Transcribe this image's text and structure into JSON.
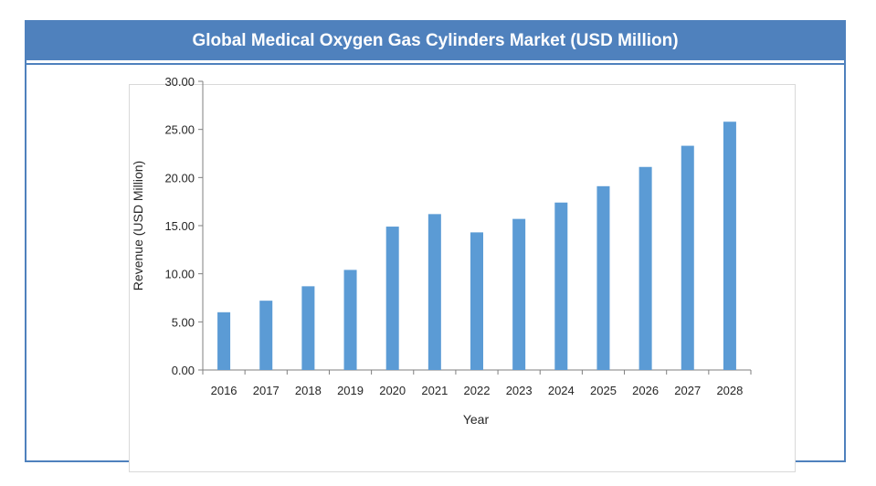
{
  "chart_data": {
    "type": "bar",
    "title": "Global Medical Oxygen Gas Cylinders Market (USD Million)",
    "xlabel": "Year",
    "ylabel": "Revenue (USD Million)",
    "ylim": [
      0,
      30
    ],
    "yticks": [
      "0.00",
      "5.00",
      "10.00",
      "15.00",
      "20.00",
      "25.00",
      "30.00"
    ],
    "categories": [
      "2016",
      "2017",
      "2018",
      "2019",
      "2020",
      "2021",
      "2022",
      "2023",
      "2024",
      "2025",
      "2026",
      "2027",
      "2028"
    ],
    "values": [
      6.0,
      7.2,
      8.7,
      10.4,
      14.9,
      16.2,
      14.3,
      15.7,
      17.4,
      19.1,
      21.1,
      23.3,
      25.8
    ],
    "bar_color": "#5b9bd5",
    "axis_color": "#7f7f7f",
    "grid": false,
    "legend": "none"
  }
}
